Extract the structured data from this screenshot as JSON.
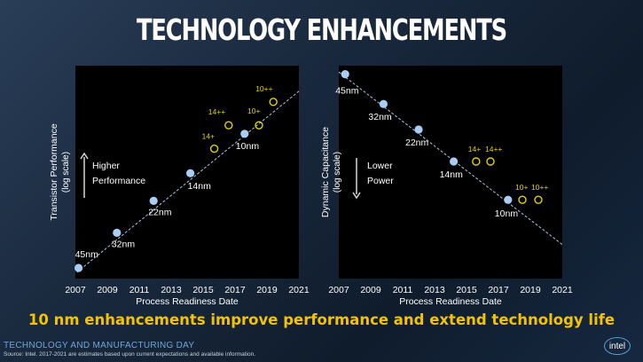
{
  "slide": {
    "title": "TECHNOLOGY ENHANCEMENTS",
    "subtitle": "10 nm enhancements improve performance and extend technology life",
    "event": "TECHNOLOGY AND MANUFACTURING DAY",
    "source": "Source: Intel. 2017-2021 are estimates based upon current expectations and available information.",
    "logo": "intel"
  },
  "colors": {
    "point": "#a9cdf5",
    "enhancement": "#e6d200",
    "trend": "#a9c7e8",
    "text": "#ffffff",
    "subtitle": "#f2c400"
  },
  "chart_data": [
    {
      "type": "scatter",
      "xlabel": "Process Readiness Date",
      "ylabel": "Transistor Performance",
      "ylabel2": "(log scale)",
      "x_ticks": [
        "2007",
        "2009",
        "2011",
        "2013",
        "2015",
        "2017",
        "2019",
        "2021"
      ],
      "xlim": [
        2007,
        2021
      ],
      "trend": [
        [
          2007.1,
          0.3
        ],
        [
          2021,
          8.8
        ]
      ],
      "annotation": {
        "arrow": "up",
        "line1": "Higher",
        "line2": "Performance"
      },
      "series": [
        {
          "points": [
            {
              "label": "45nm",
              "x": 2007.2,
              "y": 0.5
            },
            {
              "label": "32nm",
              "x": 2009.6,
              "y": 2.15
            },
            {
              "label": "22nm",
              "x": 2011.9,
              "y": 3.65
            },
            {
              "label": "14nm",
              "x": 2014.2,
              "y": 4.95
            },
            {
              "label": "10nm",
              "x": 2017.6,
              "y": 6.8
            }
          ]
        },
        {
          "points": [
            {
              "label": "14+",
              "x": 2015.7,
              "y": 6.1
            },
            {
              "label": "14++",
              "x": 2016.6,
              "y": 7.2
            },
            {
              "label": "10+",
              "x": 2018.5,
              "y": 7.2
            },
            {
              "label": "10++",
              "x": 2019.4,
              "y": 8.3
            }
          ]
        }
      ]
    },
    {
      "type": "scatter",
      "xlabel": "Process Readiness Date",
      "ylabel": "Dynamic Capacitance",
      "ylabel2": "(log scale)",
      "x_ticks": [
        "2007",
        "2009",
        "2011",
        "2013",
        "2015",
        "2017",
        "2019",
        "2021"
      ],
      "xlim": [
        2007,
        2021
      ],
      "trend": [
        [
          2007,
          9.7
        ],
        [
          2021,
          1.6
        ]
      ],
      "annotation": {
        "arrow": "down",
        "line1": "Lower",
        "line2": "Power"
      },
      "series": [
        {
          "points": [
            {
              "label": "45nm",
              "x": 2007.4,
              "y": 9.6
            },
            {
              "label": "32nm",
              "x": 2009.8,
              "y": 8.2
            },
            {
              "label": "22nm",
              "x": 2012.0,
              "y": 7.0
            },
            {
              "label": "14nm",
              "x": 2014.2,
              "y": 5.5
            },
            {
              "label": "10nm",
              "x": 2017.6,
              "y": 3.7
            }
          ]
        },
        {
          "points": [
            {
              "label": "14+",
              "x": 2015.6,
              "y": 5.5
            },
            {
              "label": "14++",
              "x": 2016.5,
              "y": 5.5
            },
            {
              "label": "10+",
              "x": 2018.5,
              "y": 3.7
            },
            {
              "label": "10++",
              "x": 2019.5,
              "y": 3.7
            }
          ]
        }
      ]
    }
  ]
}
